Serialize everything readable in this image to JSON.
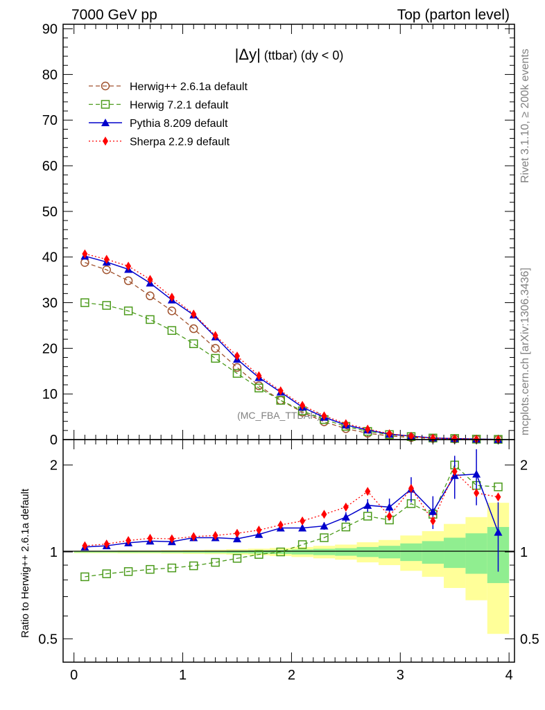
{
  "header": {
    "left": "7000 GeV pp",
    "right": "Top (parton level)"
  },
  "side_labels": {
    "rivet": "Rivet 3.1.10, ≥ 200k events",
    "mcplots": "mcplots.cern.ch [arXiv:1306.3436]"
  },
  "watermark": "(MC_FBA_TTBAR)",
  "colors": {
    "herwigpp": "#a0522d",
    "herwig7": "#4a9a1a",
    "pythia": "#0000cc",
    "sherpa": "#ff0000",
    "band_inner": "#90ee90",
    "band_outer": "#ffff99"
  },
  "chart_data": [
    {
      "type": "line",
      "title_main": "|Δy|",
      "title_rest": " (ttbar) (dy < 0)",
      "xlim": [
        -0.1,
        4.05
      ],
      "ylim": [
        0,
        91
      ],
      "y_ticks": [
        "0",
        "10",
        "20",
        "30",
        "40",
        "50",
        "60",
        "70",
        "80",
        "90"
      ],
      "x": [
        0.1,
        0.3,
        0.5,
        0.7,
        0.9,
        1.1,
        1.3,
        1.5,
        1.7,
        1.9,
        2.1,
        2.3,
        2.5,
        2.7,
        2.9,
        3.1,
        3.3,
        3.5,
        3.7,
        3.9
      ],
      "legend_position": "top-left",
      "series": [
        {
          "name": "Herwig++ 2.6.1a default",
          "key": "herwigpp",
          "values": [
            38.8,
            37.2,
            34.8,
            31.5,
            28.2,
            24.3,
            20.0,
            15.8,
            11.8,
            8.6,
            6.0,
            3.9,
            2.4,
            1.4,
            0.8,
            0.45,
            0.25,
            0.12,
            0.06,
            0.03
          ]
        },
        {
          "name": "Herwig 7.2.1 default",
          "key": "herwig7",
          "values": [
            30.0,
            29.4,
            28.2,
            26.3,
            23.9,
            21.0,
            17.8,
            14.5,
            11.3,
            8.6,
            6.3,
            4.4,
            2.9,
            1.8,
            1.1,
            0.66,
            0.34,
            0.24,
            0.1,
            0.05
          ]
        },
        {
          "name": "Pythia 8.209 default",
          "key": "pythia",
          "values": [
            40.2,
            38.9,
            37.3,
            34.3,
            30.6,
            27.3,
            22.5,
            17.6,
            13.6,
            10.4,
            7.1,
            4.9,
            3.2,
            2.1,
            1.2,
            0.76,
            0.36,
            0.22,
            0.11,
            0.04
          ]
        },
        {
          "name": "Sherpa 2.2.9 default",
          "key": "sherpa",
          "values": [
            40.7,
            39.5,
            38.0,
            35.1,
            31.2,
            27.5,
            22.8,
            18.3,
            14.0,
            10.7,
            7.5,
            5.2,
            3.5,
            2.3,
            1.3,
            0.72,
            0.33,
            0.23,
            0.1,
            0.05
          ]
        }
      ]
    },
    {
      "type": "line",
      "ylabel": "Ratio to Herwig++ 2.6.1a default",
      "scale": "log",
      "ylim": [
        0.415,
        2.45
      ],
      "y_ticks": [
        {
          "value": 0.5,
          "label": "0.5"
        },
        {
          "value": 1,
          "label": "1"
        },
        {
          "value": 2,
          "label": "2"
        }
      ],
      "xlim": [
        -0.1,
        4.05
      ],
      "x_ticks": [
        "0",
        "1",
        "2",
        "3",
        "4"
      ],
      "x": [
        0.1,
        0.3,
        0.5,
        0.7,
        0.9,
        1.1,
        1.3,
        1.5,
        1.7,
        1.9,
        2.1,
        2.3,
        2.5,
        2.7,
        2.9,
        3.1,
        3.3,
        3.5,
        3.7,
        3.9
      ],
      "band_edges": [
        0.0,
        0.2,
        0.4,
        0.6,
        0.8,
        1.0,
        1.2,
        1.4,
        1.6,
        1.8,
        2.0,
        2.2,
        2.4,
        2.6,
        2.8,
        3.0,
        3.2,
        3.4,
        3.6,
        3.8,
        4.0
      ],
      "band_inner": [
        0.005,
        0.005,
        0.006,
        0.006,
        0.007,
        0.008,
        0.009,
        0.011,
        0.013,
        0.016,
        0.02,
        0.025,
        0.03,
        0.04,
        0.05,
        0.07,
        0.09,
        0.12,
        0.16,
        0.22
      ],
      "band_outer": [
        0.01,
        0.01,
        0.012,
        0.012,
        0.014,
        0.016,
        0.018,
        0.022,
        0.026,
        0.032,
        0.04,
        0.05,
        0.06,
        0.08,
        0.1,
        0.14,
        0.18,
        0.25,
        0.32,
        0.48
      ],
      "series": [
        {
          "key": "herwig7",
          "values": [
            0.82,
            0.84,
            0.855,
            0.87,
            0.88,
            0.895,
            0.92,
            0.95,
            0.98,
            1.0,
            1.06,
            1.12,
            1.22,
            1.33,
            1.29,
            1.47,
            1.35,
            2.0,
            1.7,
            1.68
          ]
        },
        {
          "key": "pythia",
          "values": [
            1.04,
            1.05,
            1.075,
            1.09,
            1.085,
            1.12,
            1.12,
            1.11,
            1.15,
            1.21,
            1.21,
            1.23,
            1.32,
            1.45,
            1.43,
            1.65,
            1.38,
            1.84,
            1.86,
            1.17
          ],
          "errors": [
            0.01,
            0.01,
            0.01,
            0.01,
            0.01,
            0.01,
            0.01,
            0.012,
            0.015,
            0.02,
            0.025,
            0.03,
            0.04,
            0.05,
            0.07,
            0.1,
            0.13,
            0.17,
            0.22,
            0.27
          ]
        },
        {
          "key": "sherpa",
          "values": [
            1.05,
            1.065,
            1.095,
            1.115,
            1.11,
            1.13,
            1.14,
            1.16,
            1.19,
            1.24,
            1.28,
            1.35,
            1.43,
            1.62,
            1.33,
            1.66,
            1.28,
            1.9,
            1.6,
            1.55
          ]
        }
      ]
    }
  ]
}
